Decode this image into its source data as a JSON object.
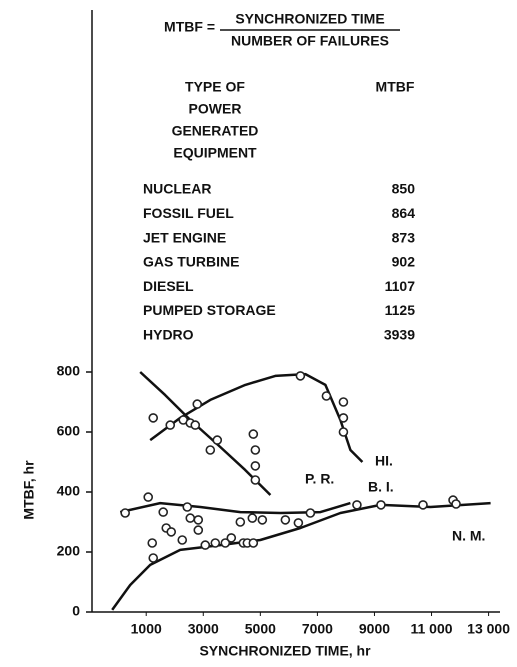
{
  "table": {
    "formula_lhs": "MTBF =",
    "numerator": "SYNCHRONIZED TIME",
    "denominator": "NUMBER OF FAILURES",
    "header_type": [
      "TYPE OF",
      "POWER",
      "GENERATED",
      "EQUIPMENT"
    ],
    "header_value": "MTBF",
    "rows": [
      [
        "NUCLEAR",
        850
      ],
      [
        "FOSSIL FUEL",
        864
      ],
      [
        "JET ENGINE",
        873
      ],
      [
        "GAS TURBINE",
        902
      ],
      [
        "DIESEL",
        1107
      ],
      [
        "PUMPED STORAGE",
        1125
      ],
      [
        "HYDRO",
        3939
      ]
    ]
  },
  "chart_data": {
    "type": "scatter",
    "x_label": "SYNCHRONIZED TIME, hr",
    "y_label": "MTBF, hr",
    "xlim": [
      -900,
      13400
    ],
    "ylim": [
      0,
      2000
    ],
    "xticks": [
      1000,
      3000,
      5000,
      7000,
      9000,
      {
        "value": 11000,
        "label": "11 000"
      },
      {
        "value": 13000,
        "label": "13 000"
      }
    ],
    "yticks": [
      0,
      200,
      400,
      600,
      800
    ],
    "color": "#222222",
    "x": [
      1246,
      1842,
      2298,
      2544,
      2719,
      2789,
      3246,
      3491,
      4754,
      4825,
      4825,
      4825,
      6404,
      7316,
      7912,
      7912,
      7912,
      263,
      1070,
      1211,
      1246,
      1596,
      1702,
      1877,
      2263,
      2439,
      2544,
      2825,
      2825,
      3070,
      3421,
      3772,
      3982,
      4298,
      4404,
      4544,
      4719,
      4754,
      5070,
      5877,
      6333,
      6754,
      8386,
      9228,
      10702,
      11754,
      11860
    ],
    "values": [
      647,
      623,
      640,
      630,
      623,
      693,
      540,
      573,
      593,
      540,
      487,
      440,
      787,
      720,
      700,
      647,
      600,
      330,
      383,
      230,
      180,
      333,
      280,
      267,
      240,
      350,
      313,
      307,
      273,
      223,
      230,
      230,
      247,
      300,
      230,
      230,
      313,
      230,
      307,
      307,
      297,
      330,
      357,
      357,
      357,
      373,
      360
    ],
    "curves": [
      {
        "name": "P. R.",
        "x": [
          789,
          1667,
          2544,
          3596,
          4474,
          5351
        ],
        "values": [
          800,
          723,
          640,
          550,
          473,
          390
        ]
      },
      {
        "name": "HI.",
        "x": [
          1140,
          2193,
          3246,
          4474,
          5526,
          6579,
          7281,
          7807,
          8158,
          8579
        ],
        "values": [
          573,
          647,
          707,
          757,
          787,
          793,
          757,
          640,
          540,
          500
        ]
      },
      {
        "name": "B. I.",
        "x": [
          88,
          1491,
          2895,
          4298,
          5702,
          7105,
          8158
        ],
        "values": [
          333,
          363,
          350,
          333,
          330,
          333,
          363
        ]
      },
      {
        "name": "N. M.",
        "x": [
          -193,
          439,
          1140,
          2193,
          3596,
          5000,
          6404,
          7807,
          9211,
          10965,
          13070
        ],
        "values": [
          7,
          90,
          157,
          207,
          223,
          240,
          280,
          330,
          357,
          350,
          363
        ]
      }
    ]
  }
}
